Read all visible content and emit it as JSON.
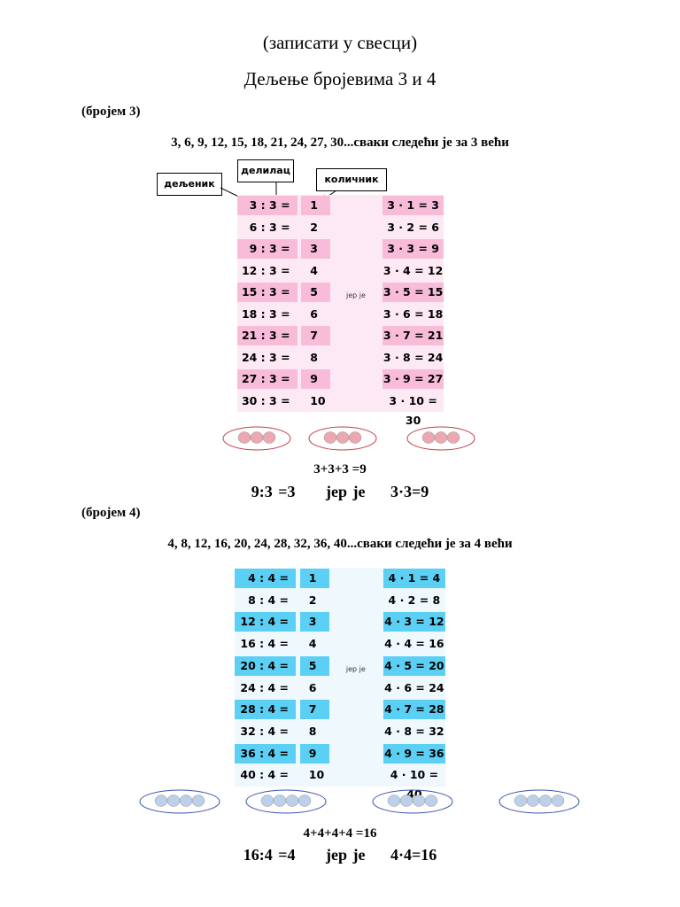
{
  "header": {
    "note": "(записати у свесци)",
    "title": "Дељење бројевима 3 и 4"
  },
  "section3": {
    "heading": "(бројем 3)",
    "sequence": "3, 6, 9, 12, 15, 18, 21, 24, 27, 30...сваки следећи је за 3 већи",
    "labels": {
      "dividend": "дељеник",
      "divisor": "делилац",
      "quotient": "количник"
    },
    "because": "јер је",
    "rows": [
      {
        "div": "3 : 3 =",
        "q": "1",
        "mul": "3 · 1 = 3"
      },
      {
        "div": "6 : 3 =",
        "q": "2",
        "mul": "3 · 2 = 6"
      },
      {
        "div": "9 : 3 =",
        "q": "3",
        "mul": "3 · 3 = 9"
      },
      {
        "div": "12 : 3 =",
        "q": "4",
        "mul": "3 · 4 = 12"
      },
      {
        "div": "15 : 3 =",
        "q": "5",
        "mul": "3 · 5 = 15"
      },
      {
        "div": "18 : 3 =",
        "q": "6",
        "mul": "3 · 6 = 18"
      },
      {
        "div": "21 : 3 =",
        "q": "7",
        "mul": "3 · 7 = 21"
      },
      {
        "div": "24 : 3 =",
        "q": "8",
        "mul": "3 · 8 = 24"
      },
      {
        "div": "27 : 3 =",
        "q": "9",
        "mul": "3 · 9 = 27"
      },
      {
        "div": "30 : 3 =",
        "q": "10",
        "mul": "3 · 10 = 30"
      }
    ],
    "groups": 3,
    "per_group": 3,
    "sum": "3+3+3 =9",
    "result": {
      "division": "9:3 =3",
      "because": "јер је",
      "product": "3·3=9"
    },
    "colors": {
      "highlight": "#f8bcd9",
      "background": "#fde9f4",
      "ball": "#eaa9b0",
      "ring": "#c0404a"
    }
  },
  "section4": {
    "heading": "(бројем 4)",
    "sequence": "4, 8, 12, 16, 20, 24, 28, 32, 36, 40...сваки следећи је за 4 већи",
    "because": "јер је",
    "rows": [
      {
        "div": "4 : 4 =",
        "q": "1",
        "mul": "4 · 1 = 4"
      },
      {
        "div": "8 : 4 =",
        "q": "2",
        "mul": "4 · 2 = 8"
      },
      {
        "div": "12 : 4 =",
        "q": "3",
        "mul": "4 · 3 = 12"
      },
      {
        "div": "16 : 4 =",
        "q": "4",
        "mul": "4 · 4 = 16"
      },
      {
        "div": "20 : 4 =",
        "q": "5",
        "mul": "4 · 5 = 20"
      },
      {
        "div": "24 : 4 =",
        "q": "6",
        "mul": "4 · 6 = 24"
      },
      {
        "div": "28 : 4 =",
        "q": "7",
        "mul": "4 · 7 = 28"
      },
      {
        "div": "32 : 4 =",
        "q": "8",
        "mul": "4 · 8 = 32"
      },
      {
        "div": "36 : 4 =",
        "q": "9",
        "mul": "4 · 9 = 36"
      },
      {
        "div": "40 : 4 =",
        "q": "10",
        "mul": "4 · 10 = 40"
      }
    ],
    "groups": 4,
    "per_group": 4,
    "sum": "4+4+4+4 =16",
    "result": {
      "division": "16:4 =4",
      "because": "јер је",
      "product": "4·4=16"
    },
    "colors": {
      "highlight": "#5bcff4",
      "background": "#eff8fd",
      "ball": "#bcd0ea",
      "ring": "#3a55a8"
    }
  }
}
